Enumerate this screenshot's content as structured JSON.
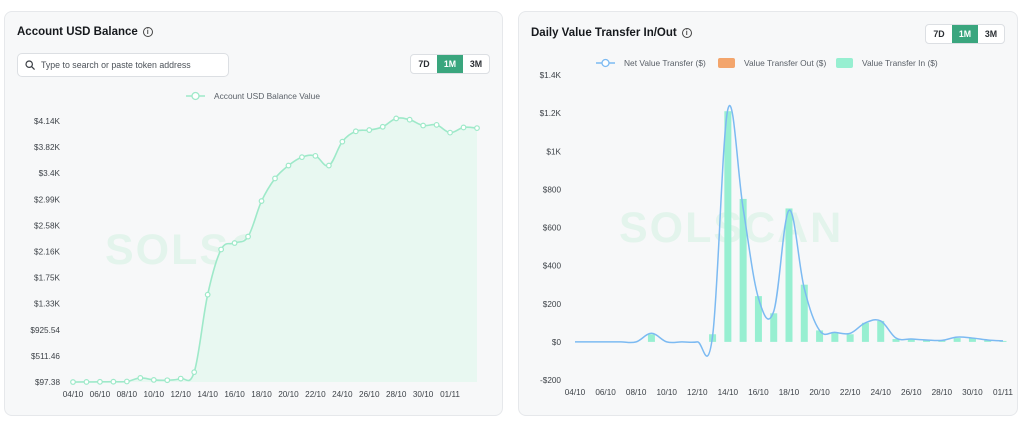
{
  "left_card": {
    "title": "Account USD Balance",
    "search": {
      "placeholder": "Type to search or paste token address"
    },
    "range": {
      "options": [
        "7D",
        "1M",
        "3M"
      ],
      "selected": "1M"
    },
    "watermark": "SOLSCAN"
  },
  "right_card": {
    "title": "Daily Value Transfer In/Out",
    "range": {
      "options": [
        "7D",
        "1M",
        "3M"
      ],
      "selected": "1M"
    },
    "watermark": "SOLSCAN"
  },
  "colors": {
    "accent": "#3aa67e",
    "balance_line": "#9ee9c9",
    "balance_fill": "#e8f8f1",
    "net_line": "#7cbaf2",
    "transfer_in": "#97efd1",
    "transfer_out": "#f3a56c"
  },
  "chart_data": [
    {
      "type": "area",
      "title": "Account USD Balance",
      "legend": [
        "Account USD Balance Value"
      ],
      "y_ticks": [
        "$4.14K",
        "$3.82K",
        "$3.4K",
        "$2.99K",
        "$2.58K",
        "$2.16K",
        "$1.75K",
        "$1.33K",
        "$925.54",
        "$511.46",
        "$97.38"
      ],
      "x_ticks": [
        "04/10",
        "06/10",
        "08/10",
        "10/10",
        "12/10",
        "14/10",
        "16/10",
        "18/10",
        "20/10",
        "22/10",
        "24/10",
        "26/10",
        "28/10",
        "30/10",
        "01/11"
      ],
      "ylim": [
        97.38,
        4140
      ],
      "series": [
        {
          "name": "Account USD Balance Value",
          "x": [
            0,
            1,
            2,
            3,
            4,
            5,
            6,
            7,
            8,
            9,
            10,
            11,
            12,
            13,
            14,
            15,
            16,
            17,
            18,
            19,
            20,
            21,
            22,
            23,
            24,
            25,
            26,
            27,
            28,
            29,
            30
          ],
          "values": [
            97,
            98,
            100,
            102,
            105,
            160,
            130,
            125,
            150,
            250,
            1450,
            2150,
            2250,
            2350,
            2900,
            3250,
            3450,
            3580,
            3600,
            3450,
            3820,
            3980,
            4000,
            4050,
            4180,
            4160,
            4070,
            4080,
            3960,
            4040,
            4030
          ]
        }
      ]
    },
    {
      "type": "bar",
      "title": "Daily Value Transfer In/Out",
      "legend": [
        "Net Value Transfer ($)",
        "Value Transfer Out ($)",
        "Value Transfer In ($)"
      ],
      "y_ticks": [
        "$1.4K",
        "$1.2K",
        "$1K",
        "$800",
        "$600",
        "$400",
        "$200",
        "$0",
        "-$200"
      ],
      "x_ticks": [
        "04/10",
        "06/10",
        "08/10",
        "10/10",
        "12/10",
        "14/10",
        "16/10",
        "18/10",
        "20/10",
        "22/10",
        "24/10",
        "26/10",
        "28/10",
        "30/10",
        "01/11"
      ],
      "ylim": [
        -200,
        1400
      ],
      "categories": [
        "04/10",
        "05/10",
        "06/10",
        "07/10",
        "08/10",
        "09/10",
        "10/10",
        "11/10",
        "12/10",
        "13/10",
        "14/10",
        "15/10",
        "16/10",
        "17/10",
        "18/10",
        "19/10",
        "20/10",
        "21/10",
        "22/10",
        "23/10",
        "24/10",
        "25/10",
        "26/10",
        "27/10",
        "28/10",
        "29/10",
        "30/10",
        "31/10",
        "01/11"
      ],
      "series": [
        {
          "name": "Value Transfer In ($)",
          "values": [
            0,
            0,
            0,
            0,
            0,
            40,
            0,
            0,
            0,
            40,
            1210,
            750,
            240,
            150,
            700,
            300,
            60,
            50,
            40,
            100,
            110,
            15,
            15,
            10,
            8,
            20,
            20,
            10,
            5
          ]
        },
        {
          "name": "Value Transfer Out ($)",
          "values": [
            0,
            0,
            0,
            0,
            0,
            0,
            0,
            0,
            0,
            0,
            0,
            0,
            0,
            0,
            0,
            0,
            0,
            0,
            0,
            0,
            0,
            0,
            0,
            0,
            0,
            0,
            0,
            0,
            0
          ]
        },
        {
          "name": "Net Value Transfer ($)",
          "values": [
            0,
            0,
            0,
            0,
            0,
            45,
            0,
            0,
            0,
            30,
            1220,
            700,
            230,
            160,
            690,
            280,
            60,
            50,
            45,
            100,
            110,
            20,
            15,
            10,
            8,
            25,
            20,
            10,
            5
          ]
        }
      ]
    }
  ]
}
